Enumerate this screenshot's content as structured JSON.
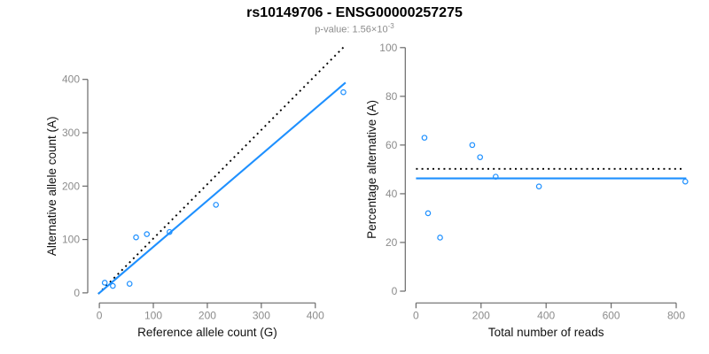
{
  "header": {
    "title": "rs10149706 - ENSG00000257275",
    "subtitle_base": "p-value: 1.56×10",
    "subtitle_exponent": "-3"
  },
  "colors": {
    "accent_blue": "#1E90FF",
    "dotted_line": "#000000",
    "axis_line": "#696969",
    "tick_label": "#8c8c8c",
    "axis_title": "#111111",
    "title": "#000000",
    "subtitle": "#8c8c8c",
    "background": "#ffffff"
  },
  "chart_data": [
    {
      "type": "scatter",
      "panel": "left",
      "title": "",
      "xlabel": "Reference allele count (G)",
      "ylabel": "Alternative allele count (A)",
      "xlim": [
        -15,
        461
      ],
      "ylim": [
        -15,
        461
      ],
      "xticks": [
        0,
        100,
        200,
        300,
        400
      ],
      "yticks": [
        0,
        100,
        200,
        300,
        400
      ],
      "grid": false,
      "legend": null,
      "point_style": "open-circle",
      "points": [
        [
          10,
          19
        ],
        [
          25,
          13
        ],
        [
          56,
          17
        ],
        [
          68,
          104
        ],
        [
          88,
          110
        ],
        [
          130,
          114
        ],
        [
          216,
          165
        ],
        [
          452,
          376
        ]
      ],
      "lines": [
        {
          "name": "identity-line",
          "style": "dotted",
          "color": "#000000",
          "from": [
            -2,
            -2
          ],
          "to": [
            452,
            460
          ]
        },
        {
          "name": "regression-line",
          "style": "solid",
          "color": "#1E90FF",
          "from": [
            -2,
            -2
          ],
          "to": [
            456,
            394
          ]
        }
      ]
    },
    {
      "type": "scatter",
      "panel": "right",
      "title": "",
      "xlabel": "Total number of reads",
      "ylabel": "Percentage alternative (A)",
      "xlim": [
        -31,
        860
      ],
      "ylim": [
        -4,
        104
      ],
      "xticks": [
        0,
        200,
        400,
        600,
        800
      ],
      "yticks": [
        0,
        20,
        40,
        60,
        80,
        100
      ],
      "grid": false,
      "legend": null,
      "point_style": "open-circle",
      "points": [
        [
          26,
          63
        ],
        [
          37,
          32
        ],
        [
          74,
          22
        ],
        [
          173,
          60
        ],
        [
          197,
          55
        ],
        [
          245,
          47
        ],
        [
          378,
          43
        ],
        [
          828,
          45
        ]
      ],
      "lines": [
        {
          "name": "expected-50pct-line",
          "style": "dotted",
          "color": "#000000",
          "from": [
            0,
            50.2
          ],
          "to": [
            820,
            50.2
          ]
        },
        {
          "name": "mean-percentage-line",
          "style": "solid",
          "color": "#1E90FF",
          "from": [
            0,
            46.3
          ],
          "to": [
            831,
            46.3
          ]
        }
      ]
    }
  ]
}
